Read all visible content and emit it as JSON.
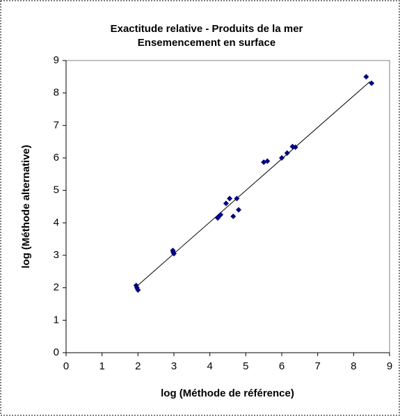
{
  "chart_data": {
    "type": "scatter",
    "title": [
      "Exactitude relative - Produits de la mer",
      "Ensemencement en surface"
    ],
    "xlabel": "log (Méthode de référence)",
    "ylabel": "log (Méthode alternative)",
    "color": "#000080",
    "x": [
      1.95,
      2.0,
      1.97,
      2.97,
      3.0,
      2.98,
      4.25,
      4.3,
      4.22,
      4.45,
      4.55,
      4.65,
      4.75,
      4.8,
      5.5,
      5.6,
      6.0,
      6.15,
      6.3,
      6.38,
      8.35,
      8.5
    ],
    "y": [
      2.07,
      1.93,
      2.0,
      3.15,
      3.05,
      3.1,
      4.2,
      4.25,
      4.15,
      4.6,
      4.75,
      4.2,
      4.75,
      4.4,
      5.87,
      5.9,
      6.0,
      6.15,
      6.35,
      6.33,
      8.5,
      8.3
    ],
    "trendline": {
      "x": [
        1.95,
        8.45
      ],
      "y": [
        2.03,
        8.35
      ]
    },
    "xlim": [
      0,
      9
    ],
    "xticks": [
      0,
      1,
      2,
      3,
      4,
      5,
      6,
      7,
      8,
      9
    ],
    "ylim": [
      0,
      9
    ],
    "yticks": [
      0,
      1,
      2,
      3,
      4,
      5,
      6,
      7,
      8,
      9
    ],
    "grid": false
  }
}
